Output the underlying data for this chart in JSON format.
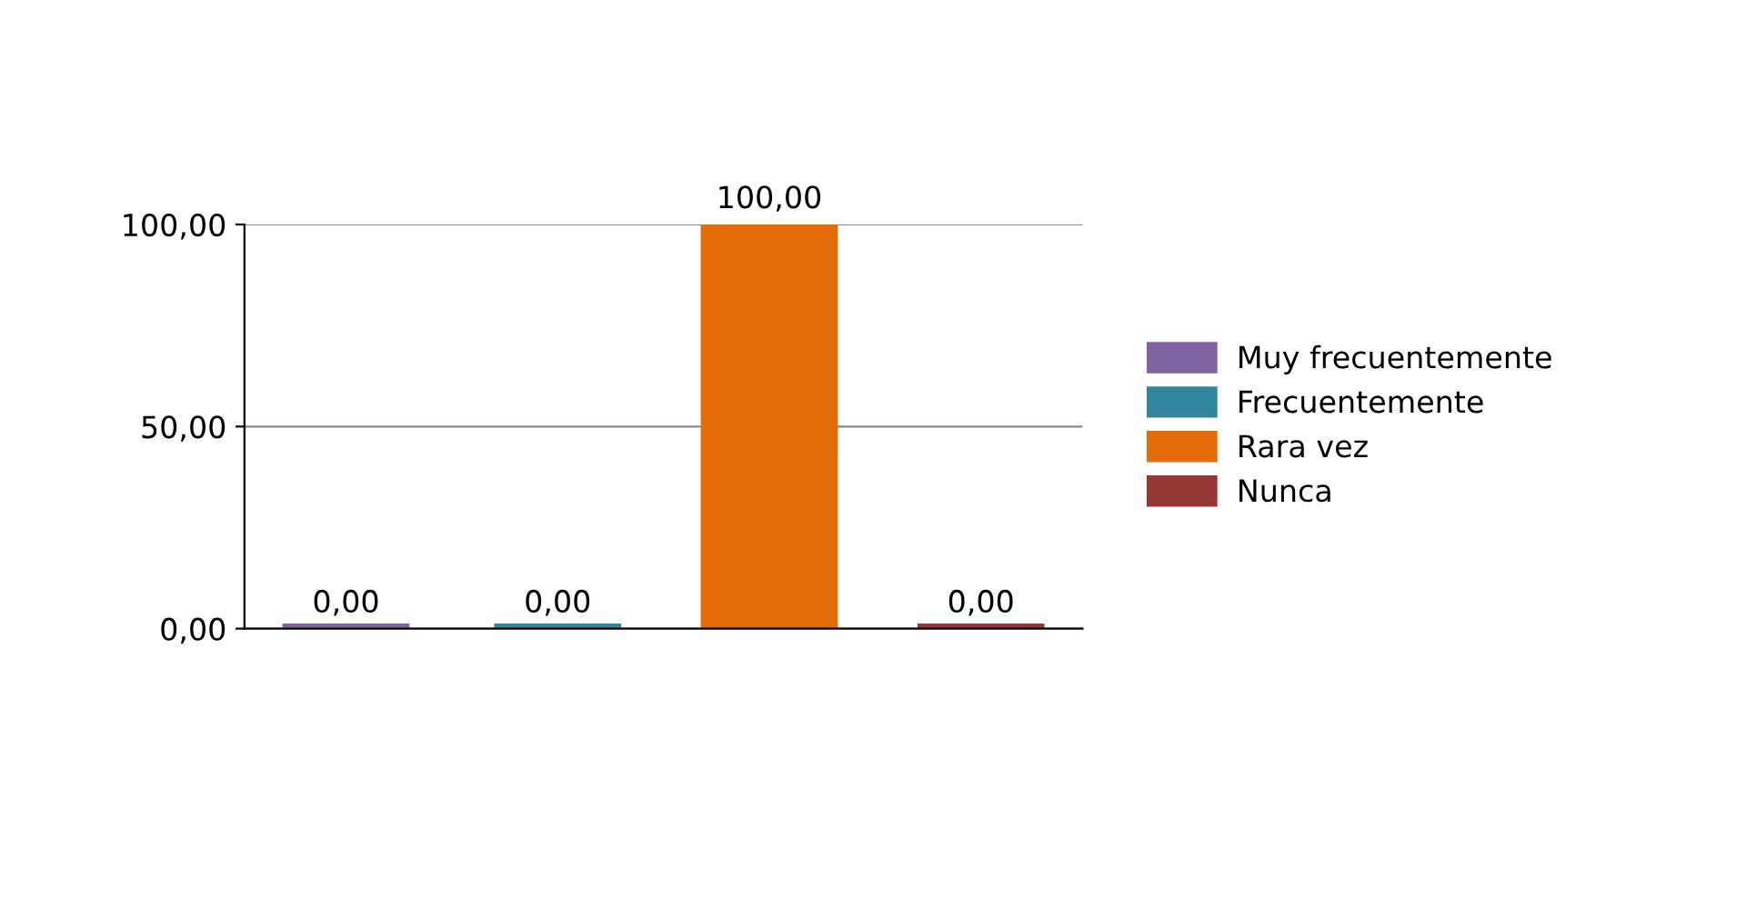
{
  "chart_data": {
    "type": "bar",
    "categories": [
      null
    ],
    "series": [
      {
        "name": "Muy frecuentemente",
        "color": "#8064a2",
        "values": [
          0
        ],
        "value_labels": [
          "0,00"
        ]
      },
      {
        "name": "Frecuentemente",
        "color": "#31859c",
        "values": [
          0
        ],
        "value_labels": [
          "0,00"
        ]
      },
      {
        "name": "Rara vez",
        "color": "#e46c0a",
        "values": [
          100
        ],
        "value_labels": [
          "100,00"
        ]
      },
      {
        "name": "Nunca",
        "color": "#953735",
        "values": [
          0
        ],
        "value_labels": [
          "0,00"
        ]
      }
    ],
    "ylim": [
      0,
      100
    ],
    "yticks": [
      {
        "value": 0,
        "label": "0,00"
      },
      {
        "value": 50,
        "label": "50,00"
      },
      {
        "value": 100,
        "label": "100,00"
      }
    ],
    "grid": "y",
    "legend": "right"
  }
}
